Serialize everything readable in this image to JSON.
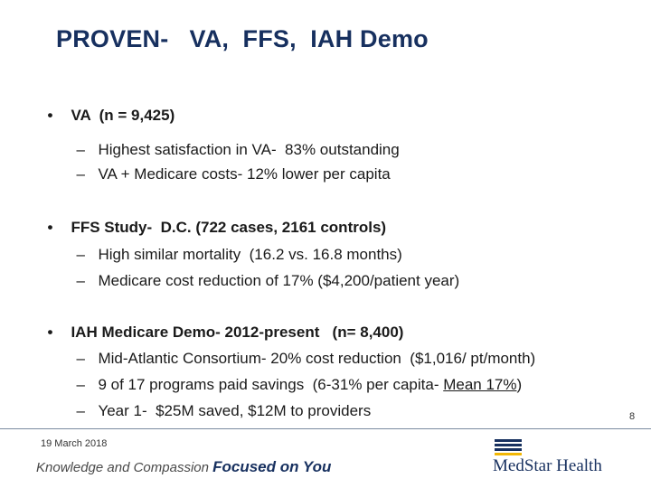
{
  "title": "PROVEN-   VA,  FFS,  IAH Demo",
  "sections": [
    {
      "bullet": "•",
      "heading": "VA  (n = 9,425)",
      "items": [
        "Highest satisfaction in VA-  83% outstanding",
        "VA + Medicare costs- 12% lower per capita"
      ]
    },
    {
      "bullet": "•",
      "heading": "FFS Study-  D.C. (722 cases, 2161 controls)",
      "items": [
        "High similar mortality  (16.2 vs. 16.8 months)",
        "Medicare cost reduction of 17% ($4,200/patient year)"
      ]
    },
    {
      "bullet": "•",
      "heading": "IAH Medicare Demo- 2012-present   (n= 8,400)",
      "items": [
        "Mid-Atlantic Consortium- 20% cost reduction  ($1,016/ pt/month)",
        "9 of 17 programs paid savings  (6-31% per capita- ",
        "Year 1-  $25M saved, $12M to providers"
      ],
      "underlined_tail": "Mean 17%",
      "tail_close": ")"
    }
  ],
  "dash": "–",
  "page_number": "8",
  "footer": {
    "date": "19 March 2018",
    "tagline_light": "Knowledge and Compassion ",
    "tagline_bold": "Focused on You",
    "logo_text": "MedStar Health"
  },
  "colors": {
    "title": "#17305f",
    "logo_blue": "#17305f",
    "logo_gold": "#f2b705"
  }
}
